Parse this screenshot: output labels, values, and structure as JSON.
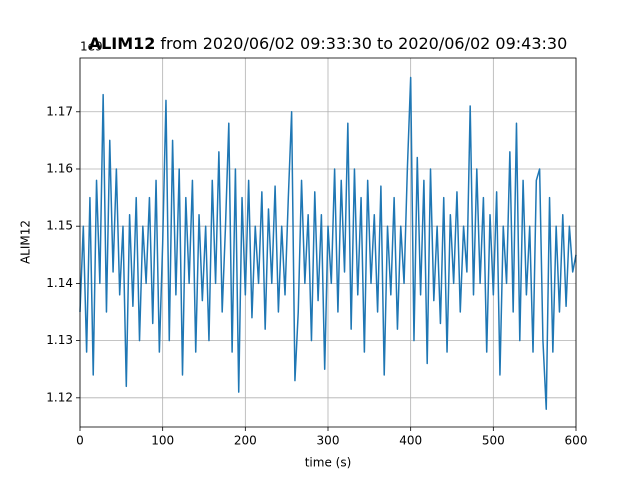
{
  "chart_data": {
    "type": "line",
    "title_bold": "ALIM12",
    "title": "from 2020/06/02 09:33:30 to 2020/06/02 09:43:30",
    "x_label": "time (s)",
    "y_label": "ALIM12",
    "offset_label": "1e9",
    "xlim": [
      0,
      600
    ],
    "xticks": [
      0,
      100,
      200,
      300,
      400,
      500,
      600
    ],
    "ylim": [
      1.1149,
      1.1794
    ],
    "yticks": [
      1.12,
      1.13,
      1.14,
      1.15,
      1.16,
      1.17
    ],
    "grid": true,
    "x": [
      0,
      4,
      8,
      12,
      16,
      20,
      24,
      28,
      32,
      36,
      40,
      44,
      48,
      52,
      56,
      60,
      64,
      68,
      72,
      76,
      80,
      84,
      88,
      92,
      96,
      100,
      104,
      108,
      112,
      116,
      120,
      124,
      128,
      132,
      136,
      140,
      144,
      148,
      152,
      156,
      160,
      164,
      168,
      172,
      176,
      180,
      184,
      188,
      192,
      196,
      200,
      204,
      208,
      212,
      216,
      220,
      224,
      228,
      232,
      236,
      240,
      244,
      248,
      252,
      256,
      260,
      264,
      268,
      272,
      276,
      280,
      284,
      288,
      292,
      296,
      300,
      304,
      308,
      312,
      316,
      320,
      324,
      328,
      332,
      336,
      340,
      344,
      348,
      352,
      356,
      360,
      364,
      368,
      372,
      376,
      380,
      384,
      388,
      392,
      396,
      400,
      404,
      408,
      412,
      416,
      420,
      424,
      428,
      432,
      436,
      440,
      444,
      448,
      452,
      456,
      460,
      464,
      468,
      472,
      476,
      480,
      484,
      488,
      492,
      496,
      500,
      504,
      508,
      512,
      516,
      520,
      524,
      528,
      532,
      536,
      540,
      544,
      548,
      552,
      556,
      560,
      564,
      568,
      572,
      576,
      580,
      584,
      588,
      592,
      596,
      600
    ],
    "series": [
      {
        "name": "ALIM12",
        "color": "#1f77b4",
        "values": [
          1.135,
          1.15,
          1.128,
          1.155,
          1.124,
          1.158,
          1.14,
          1.173,
          1.135,
          1.165,
          1.142,
          1.16,
          1.138,
          1.15,
          1.122,
          1.152,
          1.136,
          1.155,
          1.13,
          1.15,
          1.14,
          1.155,
          1.133,
          1.158,
          1.128,
          1.147,
          1.172,
          1.13,
          1.165,
          1.138,
          1.16,
          1.124,
          1.155,
          1.14,
          1.158,
          1.128,
          1.152,
          1.137,
          1.15,
          1.13,
          1.158,
          1.14,
          1.163,
          1.135,
          1.15,
          1.168,
          1.128,
          1.16,
          1.121,
          1.155,
          1.138,
          1.158,
          1.134,
          1.15,
          1.14,
          1.156,
          1.132,
          1.153,
          1.14,
          1.157,
          1.135,
          1.15,
          1.138,
          1.155,
          1.17,
          1.123,
          1.135,
          1.158,
          1.14,
          1.152,
          1.13,
          1.156,
          1.137,
          1.152,
          1.125,
          1.15,
          1.14,
          1.16,
          1.135,
          1.158,
          1.142,
          1.168,
          1.132,
          1.16,
          1.138,
          1.155,
          1.128,
          1.158,
          1.14,
          1.152,
          1.135,
          1.157,
          1.124,
          1.15,
          1.138,
          1.155,
          1.132,
          1.15,
          1.14,
          1.16,
          1.176,
          1.13,
          1.162,
          1.138,
          1.158,
          1.126,
          1.16,
          1.137,
          1.15,
          1.133,
          1.155,
          1.128,
          1.152,
          1.14,
          1.156,
          1.135,
          1.15,
          1.142,
          1.171,
          1.138,
          1.16,
          1.14,
          1.155,
          1.128,
          1.152,
          1.138,
          1.156,
          1.124,
          1.15,
          1.14,
          1.163,
          1.135,
          1.168,
          1.13,
          1.158,
          1.138,
          1.15,
          1.128,
          1.158,
          1.16,
          1.13,
          1.118,
          1.155,
          1.128,
          1.15,
          1.135,
          1.152,
          1.136,
          1.15,
          1.142,
          1.145
        ]
      }
    ]
  }
}
